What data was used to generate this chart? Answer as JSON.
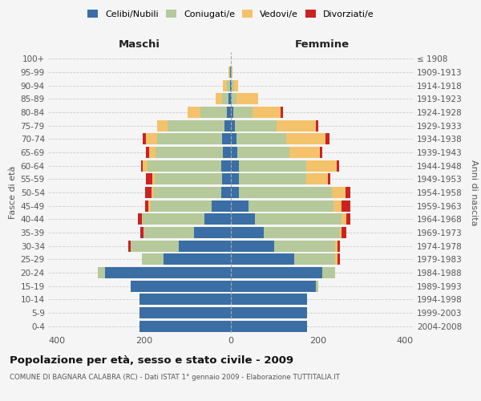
{
  "age_groups": [
    "0-4",
    "5-9",
    "10-14",
    "15-19",
    "20-24",
    "25-29",
    "30-34",
    "35-39",
    "40-44",
    "45-49",
    "50-54",
    "55-59",
    "60-64",
    "65-69",
    "70-74",
    "75-79",
    "80-84",
    "85-89",
    "90-94",
    "95-99",
    "100+"
  ],
  "birth_years": [
    "2004-2008",
    "1999-2003",
    "1994-1998",
    "1989-1993",
    "1984-1988",
    "1979-1983",
    "1974-1978",
    "1969-1973",
    "1964-1968",
    "1959-1963",
    "1954-1958",
    "1949-1953",
    "1944-1948",
    "1939-1943",
    "1934-1938",
    "1929-1933",
    "1924-1928",
    "1919-1923",
    "1914-1918",
    "1909-1913",
    "≤ 1908"
  ],
  "males": {
    "celibi": [
      210,
      210,
      210,
      230,
      290,
      155,
      120,
      85,
      60,
      45,
      22,
      20,
      22,
      18,
      20,
      15,
      10,
      5,
      2,
      1,
      0
    ],
    "coniugati": [
      0,
      0,
      0,
      0,
      15,
      50,
      110,
      115,
      145,
      140,
      155,
      155,
      170,
      155,
      150,
      130,
      60,
      15,
      8,
      2,
      0
    ],
    "vedovi": [
      0,
      0,
      0,
      0,
      0,
      0,
      0,
      0,
      0,
      5,
      5,
      5,
      10,
      15,
      25,
      25,
      30,
      15,
      8,
      2,
      0
    ],
    "divorziati": [
      0,
      0,
      0,
      0,
      0,
      0,
      5,
      8,
      8,
      8,
      15,
      15,
      5,
      8,
      8,
      0,
      0,
      0,
      0,
      0,
      0
    ]
  },
  "females": {
    "nubili": [
      175,
      175,
      175,
      195,
      210,
      145,
      100,
      75,
      55,
      40,
      18,
      18,
      18,
      15,
      12,
      10,
      5,
      2,
      2,
      0,
      0
    ],
    "coniugate": [
      0,
      0,
      0,
      5,
      30,
      95,
      140,
      175,
      200,
      195,
      215,
      155,
      155,
      120,
      115,
      95,
      45,
      10,
      5,
      2,
      0
    ],
    "vedove": [
      0,
      0,
      0,
      0,
      0,
      5,
      5,
      5,
      10,
      20,
      30,
      50,
      70,
      70,
      90,
      90,
      65,
      50,
      10,
      2,
      0
    ],
    "divorziate": [
      0,
      0,
      0,
      0,
      0,
      5,
      5,
      10,
      10,
      20,
      12,
      5,
      5,
      5,
      10,
      5,
      5,
      0,
      0,
      0,
      0
    ]
  },
  "colors": {
    "celibi": "#3a6ea5",
    "coniugati": "#b5c99a",
    "vedovi": "#f4c26b",
    "divorziati": "#cc2222"
  },
  "xlim": 420,
  "title": "Popolazione per età, sesso e stato civile - 2009",
  "subtitle": "COMUNE DI BAGNARA CALABRA (RC) - Dati ISTAT 1° gennaio 2009 - Elaborazione TUTTITALIA.IT",
  "left_label": "Maschi",
  "right_label": "Femmine",
  "ylabel": "Fasce di età",
  "right_ylabel": "Anni di nascita",
  "bg_color": "#f5f5f5",
  "grid_color": "#cccccc"
}
